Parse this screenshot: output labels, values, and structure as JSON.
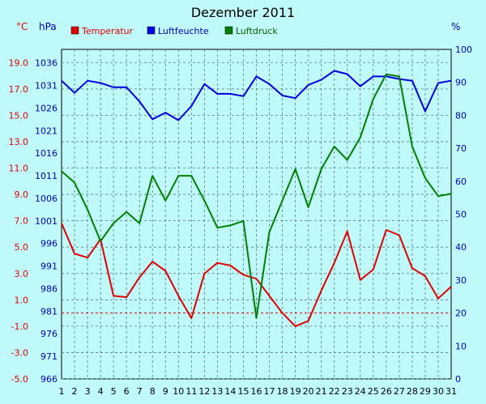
{
  "chart_data": {
    "type": "line",
    "title": "Dezember 2011",
    "x": [
      1,
      2,
      3,
      4,
      5,
      6,
      7,
      8,
      9,
      10,
      11,
      12,
      13,
      14,
      15,
      16,
      17,
      18,
      19,
      20,
      21,
      22,
      23,
      24,
      25,
      26,
      27,
      28,
      29,
      30,
      31
    ],
    "axes": {
      "temperature": {
        "unit": "°C",
        "min": -5.0,
        "max": 20.0,
        "ticks": [
          "19.0",
          "17.0",
          "15.0",
          "13.0",
          "11.0",
          "9.0",
          "7.0",
          "5.0",
          "3.0",
          "1.0",
          "-1.0",
          "-3.0",
          "-5.0"
        ],
        "color": "#e00000"
      },
      "pressure": {
        "unit": "hPa",
        "min": 966,
        "max": 1039,
        "ticks": [
          "1036",
          "1031",
          "1026",
          "1021",
          "1016",
          "1011",
          "1006",
          "1001",
          "996",
          "991",
          "986",
          "981",
          "976",
          "971",
          "966"
        ],
        "color": "#0000c0"
      },
      "humidity": {
        "unit": "%",
        "min": 0,
        "max": 100,
        "ticks": [
          "100",
          "90",
          "80",
          "70",
          "60",
          "50",
          "40",
          "30",
          "20",
          "10",
          "0"
        ],
        "color": "#0000c0"
      }
    },
    "series": [
      {
        "name": "Temperatur",
        "axis": "temperature",
        "color": "#e00000",
        "values": [
          6.8,
          4.5,
          4.2,
          5.6,
          1.3,
          1.2,
          2.7,
          3.9,
          3.2,
          1.3,
          -0.4,
          3.0,
          3.8,
          3.6,
          2.9,
          2.6,
          1.3,
          0.0,
          -1.0,
          -0.6,
          1.7,
          3.8,
          6.2,
          2.5,
          3.3,
          6.3,
          5.9,
          3.4,
          2.8,
          1.1,
          2.0
        ]
      },
      {
        "name": "Luftfeuchte",
        "axis": "humidity",
        "color": "#0000e0",
        "values": [
          90.5,
          86.8,
          90.5,
          89.8,
          88.5,
          88.5,
          84.2,
          78.8,
          80.8,
          78.5,
          82.8,
          89.5,
          86.5,
          86.5,
          85.8,
          91.8,
          89.5,
          86.0,
          85.2,
          89.2,
          90.8,
          93.5,
          92.5,
          88.8,
          91.8,
          91.8,
          91.0,
          90.5,
          81.2,
          89.8,
          90.5
        ]
      },
      {
        "name": "Luftdruck",
        "axis": "pressure",
        "color": "#008000",
        "values": [
          1012.0,
          1009.5,
          1003.5,
          996.5,
          1000.5,
          1003.0,
          1000.5,
          1011.0,
          1005.5,
          1011.0,
          1011.0,
          1005.5,
          999.5,
          1000.0,
          1001.0,
          979.5,
          998.5,
          1005.5,
          1012.5,
          1004.0,
          1012.5,
          1017.5,
          1014.5,
          1019.5,
          1028.0,
          1033.5,
          1033.0,
          1017.5,
          1010.5,
          1006.5,
          1007.0
        ]
      }
    ],
    "freezing_line": 0.0,
    "grid": true,
    "legend": "top"
  }
}
